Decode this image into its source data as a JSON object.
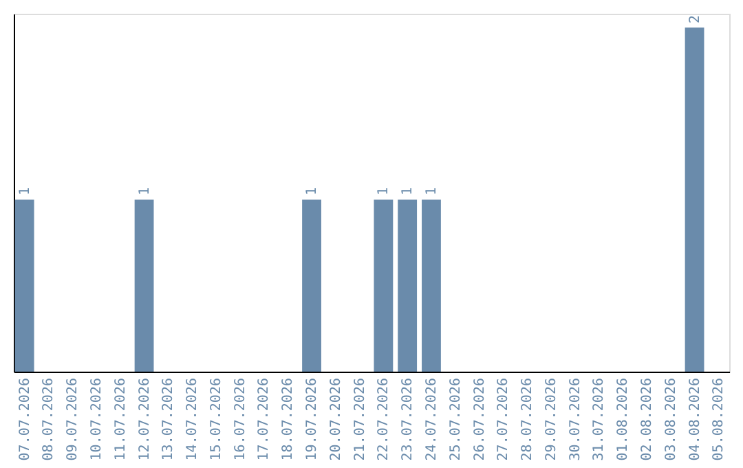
{
  "chart_data": {
    "type": "bar",
    "categories": [
      "07.07.2026",
      "08.07.2026",
      "09.07.2026",
      "10.07.2026",
      "11.07.2026",
      "12.07.2026",
      "13.07.2026",
      "14.07.2026",
      "15.07.2026",
      "16.07.2026",
      "17.07.2026",
      "18.07.2026",
      "19.07.2026",
      "20.07.2026",
      "21.07.2026",
      "22.07.2026",
      "23.07.2026",
      "24.07.2026",
      "25.07.2026",
      "26.07.2026",
      "27.07.2026",
      "28.07.2026",
      "29.07.2026",
      "30.07.2026",
      "31.07.2026",
      "01.08.2026",
      "02.08.2026",
      "03.08.2026",
      "04.08.2026",
      "05.08.2026"
    ],
    "values": [
      1,
      0,
      0,
      0,
      0,
      1,
      0,
      0,
      0,
      0,
      0,
      0,
      1,
      0,
      0,
      1,
      1,
      1,
      0,
      0,
      0,
      0,
      0,
      0,
      0,
      0,
      0,
      0,
      2,
      0
    ],
    "value_labels": [
      "1",
      null,
      null,
      null,
      null,
      "1",
      null,
      null,
      null,
      null,
      null,
      null,
      "1",
      null,
      null,
      "1",
      "1",
      "1",
      null,
      null,
      null,
      null,
      null,
      null,
      null,
      null,
      null,
      null,
      "2",
      null
    ],
    "color": "#6a8bab",
    "ylim": [
      0,
      2.08
    ],
    "tick_labels": "x",
    "grid": false
  }
}
